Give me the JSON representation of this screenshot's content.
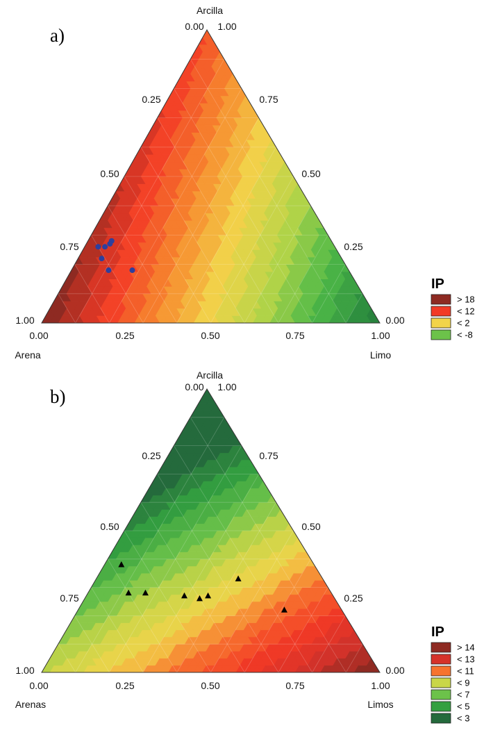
{
  "chart_data": [
    {
      "type": "ternary",
      "panel_label": "a)",
      "axes": {
        "top": "Arcilla",
        "left": "Arena",
        "right": "Limo"
      },
      "ticks": [
        "0.00",
        "0.25",
        "0.50",
        "0.75",
        "1.00"
      ],
      "legend": {
        "title": "IP",
        "placement": "right",
        "entries": [
          {
            "label": "> 18",
            "color": "#8e2a22"
          },
          {
            "label": "< 12",
            "color": "#f23a26"
          },
          {
            "label": "< 2",
            "color": "#f2d44a"
          },
          {
            "label": "< -8",
            "color": "#6cc24a"
          }
        ]
      },
      "marker": {
        "shape": "circle",
        "color": "#2d3f9e"
      },
      "points": [
        {
          "Arena": 0.65,
          "Limo": 0.07,
          "Arcilla": 0.28
        },
        {
          "Arena": 0.66,
          "Limo": 0.07,
          "Arcilla": 0.27
        },
        {
          "Arena": 0.7,
          "Limo": 0.04,
          "Arcilla": 0.26
        },
        {
          "Arena": 0.68,
          "Limo": 0.06,
          "Arcilla": 0.26
        },
        {
          "Arena": 0.71,
          "Limo": 0.07,
          "Arcilla": 0.22
        },
        {
          "Arena": 0.71,
          "Limo": 0.11,
          "Arcilla": 0.18
        },
        {
          "Arena": 0.64,
          "Limo": 0.18,
          "Arcilla": 0.18
        }
      ]
    },
    {
      "type": "ternary",
      "panel_label": "b)",
      "axes": {
        "top": "Arcilla",
        "left": "Arenas",
        "right": "Limos"
      },
      "ticks": [
        "0.00",
        "0.25",
        "0.50",
        "0.75",
        "1.00"
      ],
      "legend": {
        "title": "IP",
        "placement": "right",
        "entries": [
          {
            "label": "> 14",
            "color": "#8e2a22"
          },
          {
            "label": "< 13",
            "color": "#d6322a"
          },
          {
            "label": "< 11",
            "color": "#f7732e"
          },
          {
            "label": "< 9",
            "color": "#c9d648"
          },
          {
            "label": "< 7",
            "color": "#6cc24a"
          },
          {
            "label": "< 5",
            "color": "#34a040"
          },
          {
            "label": "< 3",
            "color": "#246a3c"
          }
        ]
      },
      "marker": {
        "shape": "triangle",
        "color": "#000000"
      },
      "points": [
        {
          "Arena": 0.57,
          "Limo": 0.05,
          "Arcilla": 0.38
        },
        {
          "Arena": 0.6,
          "Limo": 0.12,
          "Arcilla": 0.28
        },
        {
          "Arena": 0.55,
          "Limo": 0.17,
          "Arcilla": 0.28
        },
        {
          "Arena": 0.44,
          "Limo": 0.29,
          "Arcilla": 0.27
        },
        {
          "Arena": 0.4,
          "Limo": 0.34,
          "Arcilla": 0.26
        },
        {
          "Arena": 0.37,
          "Limo": 0.36,
          "Arcilla": 0.27
        },
        {
          "Arena": 0.25,
          "Limo": 0.42,
          "Arcilla": 0.33
        },
        {
          "Arena": 0.17,
          "Limo": 0.61,
          "Arcilla": 0.22
        }
      ]
    }
  ]
}
